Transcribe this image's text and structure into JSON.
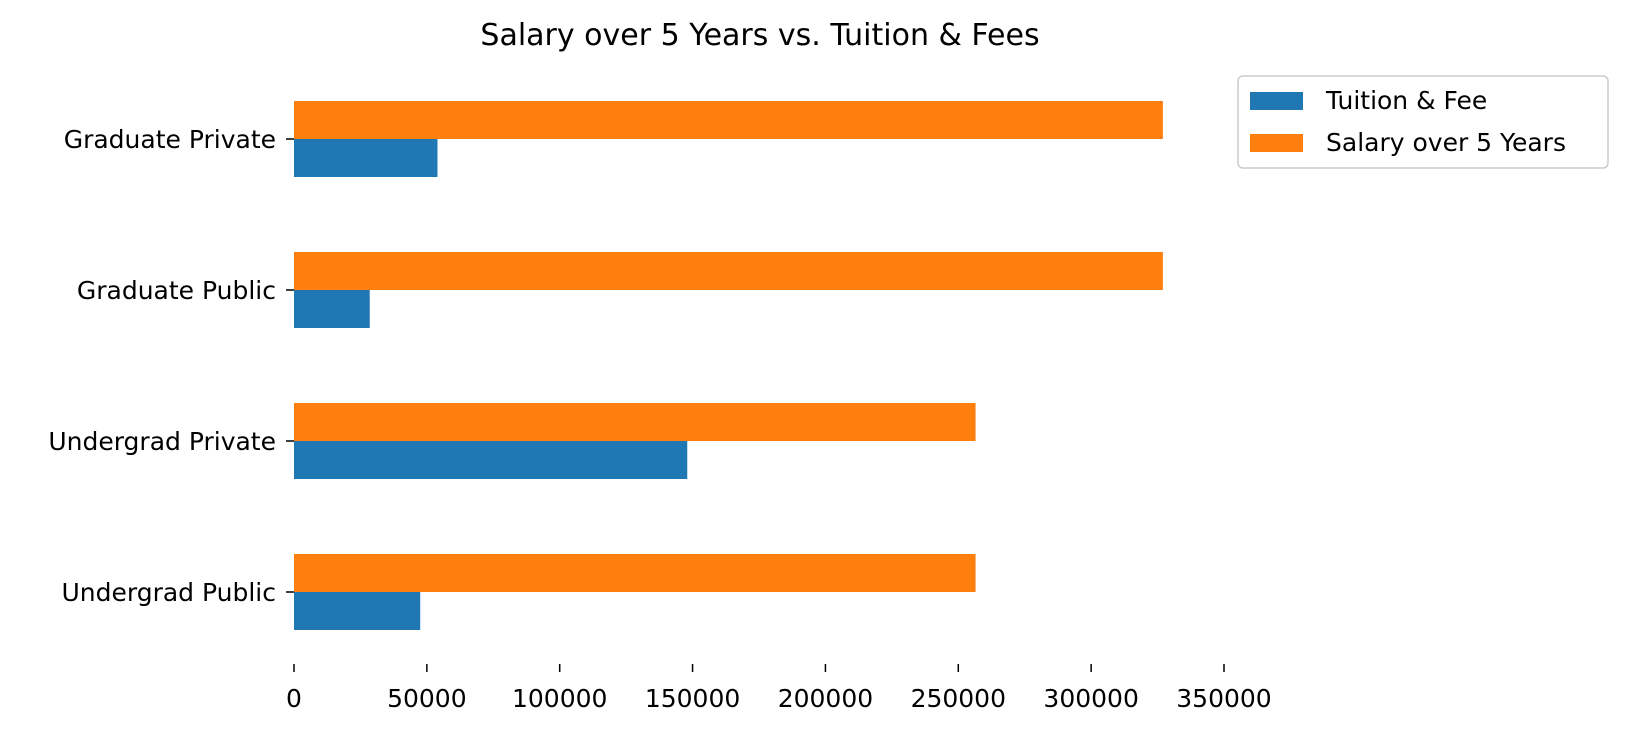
{
  "chart_data": {
    "type": "bar",
    "orientation": "horizontal",
    "title": "Salary over 5 Years vs. Tuition & Fees",
    "xlabel": "",
    "ylabel": "",
    "categories": [
      "Undergrad Public",
      "Undergrad Private",
      "Graduate Public",
      "Graduate Private"
    ],
    "series": [
      {
        "name": "Tuition & Fee",
        "color": "#1f77b4",
        "values": [
          47500,
          148000,
          28500,
          54000
        ]
      },
      {
        "name": "Salary over 5 Years",
        "color": "#ff7f0e",
        "values": [
          256500,
          256500,
          327000,
          327000
        ]
      }
    ],
    "xlim": [
      0,
      350000
    ],
    "xticks": [
      0,
      50000,
      100000,
      150000,
      200000,
      250000,
      300000,
      350000
    ],
    "xtick_labels": [
      "0",
      "50000",
      "100000",
      "150000",
      "200000",
      "250000",
      "300000",
      "350000"
    ],
    "grid": false,
    "legend_position": "top-right, outside plot"
  }
}
